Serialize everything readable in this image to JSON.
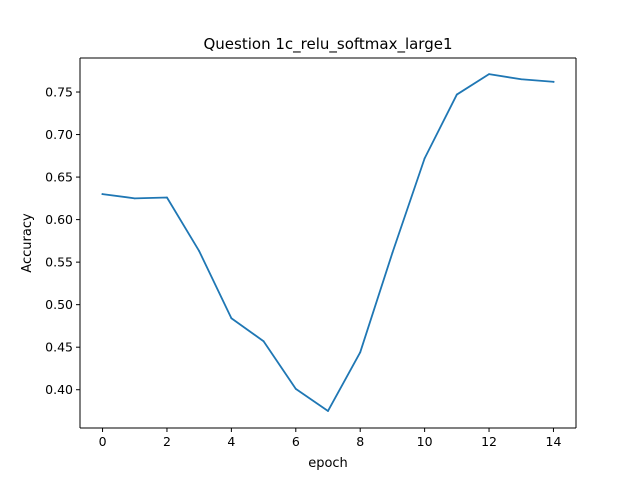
{
  "chart_data": {
    "type": "line",
    "title": "Question 1c_relu_softmax_large1",
    "xlabel": "epoch",
    "ylabel": "Accuracy",
    "xlim": [
      -0.7,
      14.7
    ],
    "ylim": [
      0.355,
      0.79
    ],
    "xticks": [
      0,
      2,
      4,
      6,
      8,
      10,
      12,
      14
    ],
    "yticks": [
      0.4,
      0.45,
      0.5,
      0.55,
      0.6,
      0.65,
      0.7,
      0.75
    ],
    "ytick_labels": [
      "0.40",
      "0.45",
      "0.50",
      "0.55",
      "0.60",
      "0.65",
      "0.70",
      "0.75"
    ],
    "grid": false,
    "series": [
      {
        "color": "#1f77b4",
        "x": [
          0,
          1,
          2,
          3,
          4,
          5,
          6,
          7,
          8,
          9,
          10,
          11,
          12,
          13,
          14
        ],
        "y": [
          0.63,
          0.625,
          0.626,
          0.563,
          0.484,
          0.457,
          0.401,
          0.375,
          0.444,
          0.561,
          0.672,
          0.747,
          0.771,
          0.765,
          0.762
        ]
      }
    ]
  }
}
